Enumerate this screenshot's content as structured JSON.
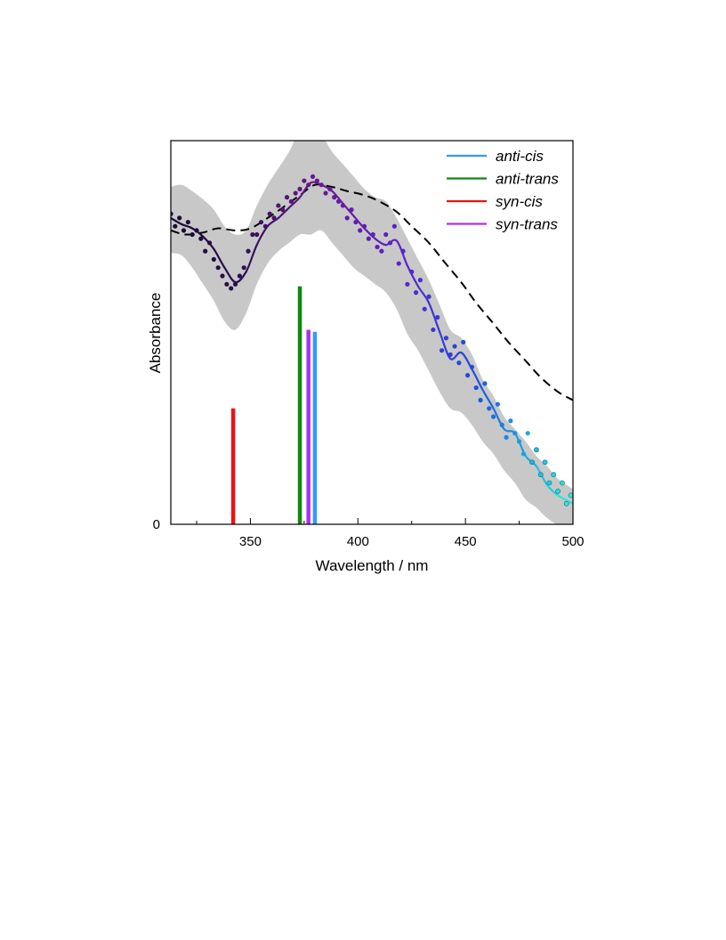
{
  "chart_data": {
    "type": "line",
    "xlabel": "Wavelength / nm",
    "ylabel": "Absorbance",
    "xlim": [
      313,
      500
    ],
    "ylim": [
      0,
      1
    ],
    "x_ticks": [
      350,
      400,
      450,
      500
    ],
    "x_minor_ticks": [
      325,
      375,
      425,
      475
    ],
    "y_ticks": [
      0
    ],
    "grid": false,
    "legend_position": "top-right",
    "legend": [
      {
        "label": "anti-cis",
        "color": "#3399ff"
      },
      {
        "label": "anti-trans",
        "color": "#118811"
      },
      {
        "label": "syn-cis",
        "color": "#ee1111"
      },
      {
        "label": "syn-trans",
        "color": "#aa33ee"
      }
    ],
    "sticks": [
      {
        "name": "syn-cis",
        "x": 342,
        "y": 0.28,
        "color": "#ee1111"
      },
      {
        "name": "anti-trans",
        "x": 373,
        "y": 0.575,
        "color": "#118811"
      },
      {
        "name": "syn-trans",
        "x": 377,
        "y": 0.47,
        "color": "#aa33ee"
      },
      {
        "name": "anti-cis",
        "x": 380,
        "y": 0.465,
        "color": "#3399ff"
      }
    ],
    "experimental_fit": {
      "x": [
        313,
        318,
        323,
        328,
        333,
        338,
        343,
        348,
        353,
        358,
        363,
        368,
        373,
        378,
        383,
        388,
        393,
        398,
        403,
        408,
        413,
        418,
        423,
        428,
        433,
        438,
        443,
        448,
        453,
        458,
        463,
        468,
        473,
        478,
        483,
        488,
        493,
        500
      ],
      "y": [
        0.74,
        0.725,
        0.715,
        0.695,
        0.665,
        0.62,
        0.585,
        0.61,
        0.675,
        0.72,
        0.74,
        0.765,
        0.79,
        0.825,
        0.82,
        0.805,
        0.775,
        0.745,
        0.715,
        0.69,
        0.675,
        0.685,
        0.625,
        0.575,
        0.535,
        0.465,
        0.4,
        0.415,
        0.375,
        0.325,
        0.28,
        0.23,
        0.22,
        0.165,
        0.14,
        0.095,
        0.07,
        0.05
      ],
      "band_upper": [
        0.815,
        0.82,
        0.805,
        0.785,
        0.76,
        0.72,
        0.7,
        0.71,
        0.77,
        0.82,
        0.86,
        0.9,
        0.95,
        0.95,
        0.94,
        0.9,
        0.87,
        0.84,
        0.81,
        0.79,
        0.78,
        0.74,
        0.69,
        0.64,
        0.59,
        0.53,
        0.47,
        0.45,
        0.41,
        0.35,
        0.31,
        0.26,
        0.23,
        0.2,
        0.165,
        0.14,
        0.11,
        0.085
      ],
      "band_lower": [
        0.655,
        0.65,
        0.62,
        0.58,
        0.54,
        0.49,
        0.47,
        0.51,
        0.58,
        0.63,
        0.66,
        0.68,
        0.7,
        0.7,
        0.71,
        0.68,
        0.65,
        0.62,
        0.6,
        0.58,
        0.56,
        0.52,
        0.46,
        0.42,
        0.37,
        0.32,
        0.28,
        0.27,
        0.24,
        0.2,
        0.17,
        0.13,
        0.1,
        0.06,
        0.04,
        0.015,
        0.0,
        0.0
      ]
    },
    "experimental_points": {
      "x": [
        313,
        315,
        317,
        319,
        321,
        323,
        325,
        327,
        329,
        331,
        333,
        335,
        337,
        339,
        341,
        343,
        345,
        347,
        349,
        351,
        353,
        355,
        357,
        359,
        361,
        363,
        365,
        367,
        369,
        371,
        373,
        375,
        377,
        379,
        381,
        383,
        385,
        387,
        389,
        391,
        393,
        395,
        397,
        399,
        401,
        403,
        405,
        407,
        409,
        411,
        413,
        415,
        417,
        419,
        421,
        423,
        425,
        427,
        429,
        431,
        433,
        435,
        437,
        439,
        441,
        443,
        445,
        447,
        449,
        451,
        453,
        455,
        457,
        459,
        461,
        463,
        465,
        467,
        469,
        471,
        473,
        475,
        477,
        479,
        481,
        483,
        485,
        487,
        489,
        491,
        493,
        495,
        497,
        499
      ],
      "y": [
        0.75,
        0.72,
        0.74,
        0.71,
        0.73,
        0.7,
        0.71,
        0.69,
        0.66,
        0.68,
        0.64,
        0.62,
        0.6,
        0.58,
        0.57,
        0.58,
        0.6,
        0.62,
        0.66,
        0.7,
        0.7,
        0.73,
        0.72,
        0.75,
        0.74,
        0.77,
        0.76,
        0.79,
        0.78,
        0.8,
        0.81,
        0.83,
        0.82,
        0.84,
        0.83,
        0.82,
        0.8,
        0.81,
        0.79,
        0.78,
        0.77,
        0.74,
        0.76,
        0.73,
        0.71,
        0.72,
        0.69,
        0.7,
        0.67,
        0.66,
        0.7,
        0.68,
        0.72,
        0.63,
        0.66,
        0.58,
        0.61,
        0.56,
        0.59,
        0.52,
        0.55,
        0.47,
        0.5,
        0.42,
        0.45,
        0.41,
        0.43,
        0.39,
        0.44,
        0.36,
        0.38,
        0.33,
        0.3,
        0.34,
        0.28,
        0.26,
        0.29,
        0.24,
        0.21,
        0.25,
        0.22,
        0.2,
        0.17,
        0.22,
        0.15,
        0.18,
        0.12,
        0.15,
        0.1,
        0.12,
        0.08,
        0.1,
        0.05,
        0.07
      ]
    },
    "computed_spectrum": {
      "style": "dashed",
      "x": [
        313,
        320,
        328,
        335,
        343,
        350,
        358,
        365,
        373,
        380,
        388,
        395,
        403,
        410,
        418,
        425,
        433,
        440,
        448,
        455,
        463,
        470,
        478,
        485,
        493,
        500
      ],
      "y": [
        0.71,
        0.7,
        0.705,
        0.715,
        0.71,
        0.715,
        0.74,
        0.765,
        0.795,
        0.82,
        0.815,
        0.805,
        0.795,
        0.78,
        0.755,
        0.72,
        0.68,
        0.635,
        0.585,
        0.535,
        0.485,
        0.44,
        0.395,
        0.355,
        0.32,
        0.3
      ]
    }
  }
}
